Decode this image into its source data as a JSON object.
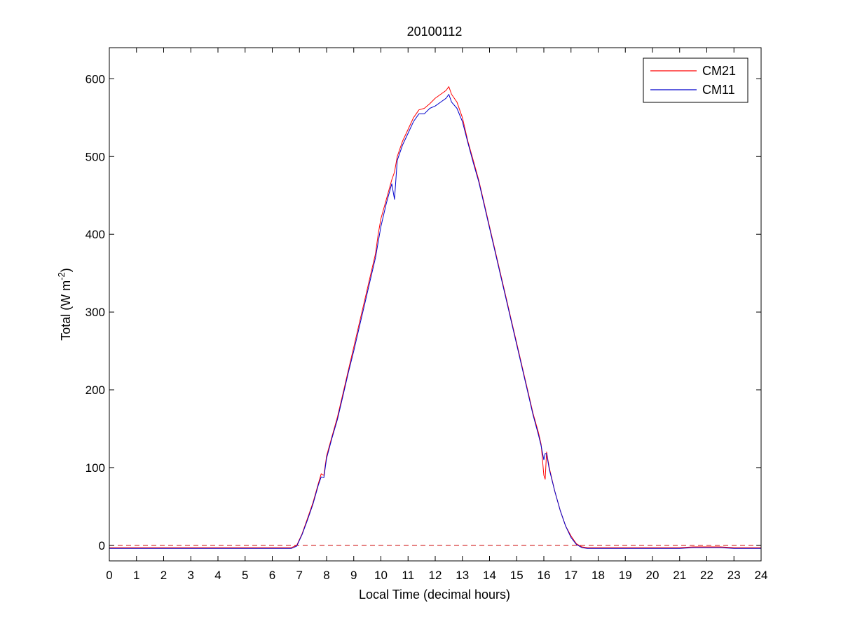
{
  "chart_data": {
    "type": "line",
    "title": "20100112",
    "xlabel": "Local Time (decimal hours)",
    "ylabel": "Total (W m",
    "ylabel_superscript": "-2",
    "ylabel_suffix": ")",
    "xlim": [
      0,
      24
    ],
    "ylim": [
      -20,
      640
    ],
    "xticks": [
      "0",
      "1",
      "2",
      "3",
      "4",
      "5",
      "6",
      "7",
      "8",
      "9",
      "10",
      "11",
      "12",
      "13",
      "14",
      "15",
      "16",
      "17",
      "18",
      "19",
      "20",
      "21",
      "22",
      "23",
      "24"
    ],
    "yticks": [
      "0",
      "100",
      "200",
      "300",
      "400",
      "500",
      "600"
    ],
    "grid": false,
    "legend": "top-right",
    "reference_line": {
      "y": 0,
      "style": "dashed",
      "color": "#cc0000"
    },
    "series": [
      {
        "name": "CM21",
        "color": "#ff0000",
        "x": [
          0,
          1,
          2,
          3,
          4,
          5,
          6,
          6.7,
          6.9,
          7.1,
          7.3,
          7.5,
          7.7,
          7.8,
          7.9,
          8.0,
          8.2,
          8.4,
          8.6,
          8.8,
          9.0,
          9.2,
          9.4,
          9.6,
          9.8,
          9.9,
          10.0,
          10.2,
          10.4,
          10.5,
          10.6,
          10.8,
          11.0,
          11.2,
          11.4,
          11.6,
          11.8,
          12.0,
          12.2,
          12.4,
          12.5,
          12.6,
          12.8,
          13.0,
          13.2,
          13.4,
          13.6,
          13.8,
          14.0,
          14.2,
          14.4,
          14.6,
          14.8,
          15.0,
          15.2,
          15.4,
          15.6,
          15.8,
          15.9,
          16.0,
          16.05,
          16.1,
          16.2,
          16.4,
          16.6,
          16.8,
          17.0,
          17.2,
          17.4,
          17.6,
          18,
          19,
          20,
          21,
          21.5,
          22,
          22.5,
          23,
          24
        ],
        "y": [
          -3,
          -3,
          -3,
          -3,
          -3,
          -3,
          -3,
          -3,
          0,
          15,
          35,
          55,
          80,
          92,
          90,
          115,
          140,
          165,
          195,
          225,
          255,
          285,
          315,
          345,
          375,
          400,
          420,
          445,
          470,
          480,
          500,
          520,
          535,
          550,
          560,
          562,
          568,
          575,
          580,
          585,
          590,
          580,
          570,
          550,
          520,
          495,
          470,
          440,
          410,
          380,
          350,
          320,
          290,
          260,
          230,
          200,
          170,
          145,
          130,
          90,
          85,
          120,
          100,
          70,
          45,
          25,
          12,
          2,
          -2,
          -3,
          -3,
          -3,
          -3,
          -3,
          -2,
          -2,
          -2,
          -3,
          -3
        ]
      },
      {
        "name": "CM11",
        "color": "#0000cc",
        "x": [
          0,
          1,
          2,
          3,
          4,
          5,
          6,
          6.7,
          6.9,
          7.1,
          7.3,
          7.5,
          7.7,
          7.8,
          7.9,
          8.0,
          8.2,
          8.4,
          8.6,
          8.8,
          9.0,
          9.2,
          9.4,
          9.6,
          9.8,
          9.9,
          10.0,
          10.2,
          10.4,
          10.5,
          10.6,
          10.8,
          11.0,
          11.2,
          11.4,
          11.6,
          11.8,
          12.0,
          12.2,
          12.4,
          12.5,
          12.6,
          12.8,
          13.0,
          13.2,
          13.4,
          13.6,
          13.8,
          14.0,
          14.2,
          14.4,
          14.6,
          14.8,
          15.0,
          15.2,
          15.4,
          15.6,
          15.8,
          15.9,
          16.0,
          16.05,
          16.1,
          16.2,
          16.4,
          16.6,
          16.8,
          17.0,
          17.2,
          17.4,
          17.6,
          18,
          19,
          20,
          21,
          21.5,
          22,
          22.5,
          23,
          24
        ],
        "y": [
          -4,
          -4,
          -4,
          -4,
          -4,
          -4,
          -4,
          -4,
          -1,
          14,
          33,
          53,
          78,
          88,
          87,
          112,
          138,
          162,
          192,
          222,
          250,
          280,
          310,
          340,
          370,
          390,
          410,
          440,
          465,
          445,
          495,
          515,
          530,
          545,
          555,
          555,
          562,
          565,
          570,
          575,
          580,
          570,
          562,
          545,
          518,
          492,
          468,
          438,
          408,
          378,
          348,
          318,
          288,
          258,
          228,
          198,
          168,
          142,
          128,
          110,
          118,
          118,
          98,
          70,
          45,
          25,
          10,
          1,
          -3,
          -4,
          -4,
          -4,
          -4,
          -4,
          -3,
          -3,
          -3,
          -4,
          -4
        ]
      }
    ]
  }
}
